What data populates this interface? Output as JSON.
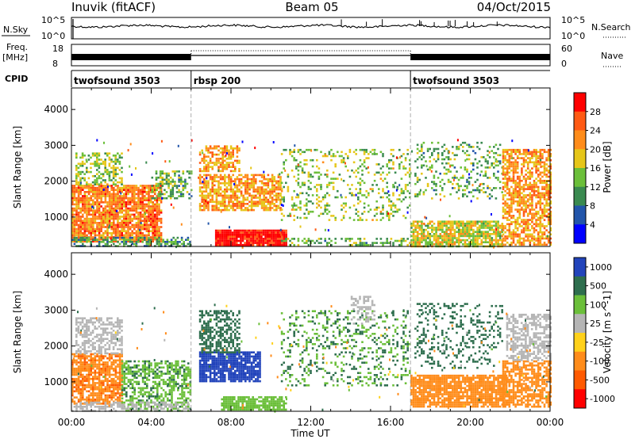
{
  "header": {
    "station": "Inuvik (fitACF)",
    "beam": "Beam 05",
    "date": "04/Oct/2015"
  },
  "noise_panel": {
    "left_label": "N.Sky",
    "right_label": "N.Search",
    "left_ticks": [
      "10^5",
      "10^0"
    ],
    "right_ticks": [
      "10^5",
      "10^0"
    ]
  },
  "freq_panel": {
    "left_label_line1": "Freq.",
    "left_label_line2": "[MHz]",
    "right_label": "Nave",
    "left_ticks": [
      "18",
      "8"
    ],
    "right_ticks": [
      "60",
      "0"
    ]
  },
  "cpid_panel": {
    "label": "CPID",
    "programs": [
      {
        "name": "twofsound 3503",
        "start_hour": 0,
        "end_hour": 6
      },
      {
        "name": "rbsp 200",
        "start_hour": 6,
        "end_hour": 17
      },
      {
        "name": "twofsound 3503",
        "start_hour": 17,
        "end_hour": 24
      }
    ]
  },
  "colors": {
    "power": [
      "#0000ff",
      "#2255aa",
      "#3a8a50",
      "#6bbf3a",
      "#e6c619",
      "#ff8c1a",
      "#ff5a14",
      "#ff0000"
    ],
    "velocity": [
      "#2244bb",
      "#2e6e4e",
      "#6bbf3a",
      "#b5b5b5",
      "#ffd11a",
      "#ff8c1a",
      "#ff5a00",
      "#ff0000"
    ]
  },
  "chart_data": [
    {
      "type": "heatmap",
      "title": "Power",
      "xlabel": "",
      "ylabel": "Slant Range [km]",
      "x_ticks": [
        "00:00",
        "04:00",
        "08:00",
        "12:00",
        "16:00",
        "20:00",
        "00:00"
      ],
      "y_ticks": [
        1000,
        2000,
        3000,
        4000
      ],
      "xlim_hours": [
        0,
        24
      ],
      "ylim_km": [
        180,
        4600
      ],
      "colorbar": {
        "label": "Power [dB]",
        "ticks": [
          "4",
          "8",
          "12",
          "16",
          "20",
          "24",
          "28"
        ],
        "range": [
          0,
          30
        ]
      },
      "cpid_change_hours": [
        6,
        17
      ],
      "echo_regions": [
        {
          "t0": 0.0,
          "t1": 4.5,
          "r0": 300,
          "r1": 1900,
          "value": 22,
          "density": 0.85
        },
        {
          "t0": 0.2,
          "t1": 2.5,
          "r0": 1900,
          "r1": 2800,
          "value": 14,
          "density": 0.5
        },
        {
          "t0": 0.0,
          "t1": 6.0,
          "r0": 200,
          "r1": 450,
          "value": 10,
          "density": 0.55
        },
        {
          "t0": 4.0,
          "t1": 6.0,
          "r0": 1500,
          "r1": 2300,
          "value": 12,
          "density": 0.45
        },
        {
          "t0": 6.4,
          "t1": 10.5,
          "r0": 1200,
          "r1": 2200,
          "value": 20,
          "density": 0.7
        },
        {
          "t0": 6.4,
          "t1": 8.4,
          "r0": 2300,
          "r1": 3000,
          "value": 20,
          "density": 0.55
        },
        {
          "t0": 7.2,
          "t1": 10.8,
          "r0": 200,
          "r1": 650,
          "value": 29,
          "density": 0.95
        },
        {
          "t0": 10.5,
          "t1": 17.0,
          "r0": 900,
          "r1": 2900,
          "value": 14,
          "density": 0.22
        },
        {
          "t0": 10.5,
          "t1": 17.0,
          "r0": 200,
          "r1": 420,
          "value": 12,
          "density": 0.4
        },
        {
          "t0": 17.0,
          "t1": 21.6,
          "r0": 200,
          "r1": 900,
          "value": 16,
          "density": 0.8
        },
        {
          "t0": 17.2,
          "t1": 21.6,
          "r0": 1500,
          "r1": 3100,
          "value": 12,
          "density": 0.22
        },
        {
          "t0": 21.6,
          "t1": 24.0,
          "r0": 200,
          "r1": 2900,
          "value": 20,
          "density": 0.65
        }
      ]
    },
    {
      "type": "heatmap",
      "title": "Velocity",
      "xlabel": "Time UT",
      "ylabel": "Slant Range [km]",
      "x_ticks": [
        "00:00",
        "04:00",
        "08:00",
        "12:00",
        "16:00",
        "20:00",
        "00:00"
      ],
      "y_ticks": [
        1000,
        2000,
        3000,
        4000
      ],
      "xlim_hours": [
        0,
        24
      ],
      "ylim_km": [
        180,
        4600
      ],
      "colorbar": {
        "label": "Velocity [m s^-1]",
        "ticks": [
          "1000",
          "500",
          "100",
          "25",
          "-25",
          "-100",
          "-500",
          "-1000"
        ],
        "scale": "symlog"
      },
      "cpid_change_hours": [
        6,
        17
      ],
      "echo_regions": [
        {
          "t0": 0.0,
          "t1": 2.5,
          "r0": 400,
          "r1": 1800,
          "value": -400,
          "density": 0.75
        },
        {
          "t0": 0.2,
          "t1": 2.5,
          "r0": 1800,
          "r1": 2800,
          "value": 0,
          "density": 0.55
        },
        {
          "t0": 2.5,
          "t1": 6.0,
          "r0": 200,
          "r1": 1600,
          "value": 80,
          "density": 0.55
        },
        {
          "t0": 0.0,
          "t1": 6.0,
          "r0": 200,
          "r1": 450,
          "value": 0,
          "density": 0.55
        },
        {
          "t0": 6.4,
          "t1": 9.5,
          "r0": 1000,
          "r1": 1850,
          "value": 900,
          "density": 0.85
        },
        {
          "t0": 6.4,
          "t1": 8.4,
          "r0": 1850,
          "r1": 3000,
          "value": 200,
          "density": 0.55
        },
        {
          "t0": 7.5,
          "t1": 10.8,
          "r0": 200,
          "r1": 600,
          "value": 60,
          "density": 0.8
        },
        {
          "t0": 10.5,
          "t1": 17.0,
          "r0": 900,
          "r1": 3000,
          "value": 100,
          "density": 0.22
        },
        {
          "t0": 14.0,
          "t1": 15.2,
          "r0": 2600,
          "r1": 3400,
          "value": 0,
          "density": 0.4
        },
        {
          "t0": 17.0,
          "t1": 21.8,
          "r0": 300,
          "r1": 1200,
          "value": -300,
          "density": 0.85
        },
        {
          "t0": 17.2,
          "t1": 21.6,
          "r0": 1400,
          "r1": 3200,
          "value": 150,
          "density": 0.22
        },
        {
          "t0": 21.6,
          "t1": 24.0,
          "r0": 300,
          "r1": 1600,
          "value": -300,
          "density": 0.65
        },
        {
          "t0": 21.8,
          "t1": 24.0,
          "r0": 1600,
          "r1": 2900,
          "value": 0,
          "density": 0.55
        }
      ]
    }
  ]
}
